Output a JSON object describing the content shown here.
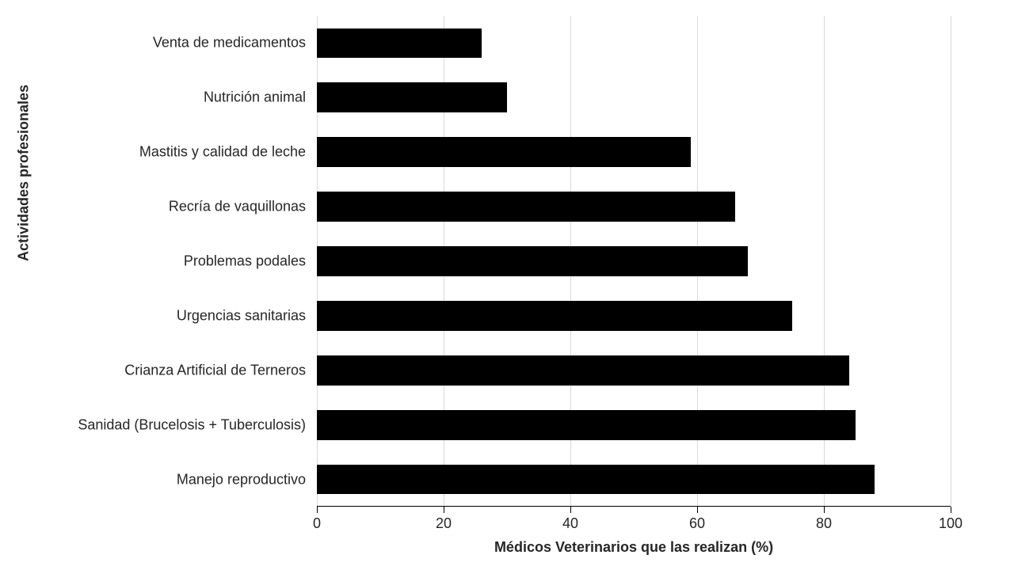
{
  "chart": {
    "type": "bar-horizontal",
    "xlabel": "Médicos Veterinarios que las realizan (%)",
    "ylabel": "Actividades profesionales",
    "xlim": [
      0,
      100
    ],
    "xtick_step": 20,
    "xticks": [
      0,
      20,
      40,
      60,
      80,
      100
    ],
    "background_color": "#ffffff",
    "grid_color": "#d9d9d9",
    "axis_color": "#000000",
    "bar_color": "#000000",
    "bar_width": 0.55,
    "label_fontsize": 18,
    "tick_fontsize": 18,
    "font_color": "#262626",
    "categories": [
      "Venta de medicamentos",
      "Nutrición animal",
      "Mastitis y calidad de leche",
      "Recría de vaquillonas",
      "Problemas podales",
      "Urgencias sanitarias",
      "Crianza Artificial de Terneros",
      "Sanidad (Brucelosis + Tuberculosis)",
      "Manejo reproductivo"
    ],
    "values": [
      26,
      30,
      59,
      66,
      68,
      75,
      84,
      85,
      88
    ]
  }
}
